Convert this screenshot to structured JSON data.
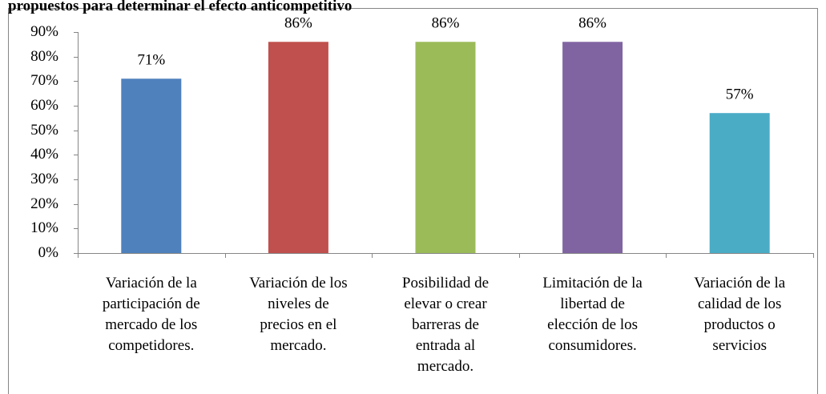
{
  "chart_data": {
    "type": "bar",
    "title": "propuestos para determinar el efecto anticompetitivo",
    "categories": [
      "Variación de la\nparticipación de\nmercado de los\ncompetidores.",
      "Variación de los\nniveles de\nprecios en el\nmercado.",
      "Posibilidad de\nelevar o crear\nbarreras de\nentrada al\nmercado.",
      "Limitación de la\nlibertad de\nelección de los\nconsumidores.",
      "Variación de la\ncalidad de los\nproductos o\nservicios"
    ],
    "values": [
      71,
      86,
      86,
      86,
      57
    ],
    "value_labels": [
      "71%",
      "86%",
      "86%",
      "86%",
      "57%"
    ],
    "colors": [
      "#4f81bd",
      "#c0504d",
      "#9bbb59",
      "#8064a2",
      "#4bacc6"
    ],
    "ylim": [
      0,
      90
    ],
    "yticks": [
      {
        "value": 0,
        "label": "0%"
      },
      {
        "value": 10,
        "label": "10%"
      },
      {
        "value": 20,
        "label": "20%"
      },
      {
        "value": 30,
        "label": "30%"
      },
      {
        "value": 40,
        "label": "40%"
      },
      {
        "value": 50,
        "label": "50%"
      },
      {
        "value": 60,
        "label": "60%"
      },
      {
        "value": 70,
        "label": "70%"
      },
      {
        "value": 80,
        "label": "80%"
      },
      {
        "value": 90,
        "label": "90%"
      }
    ],
    "grid": false
  }
}
